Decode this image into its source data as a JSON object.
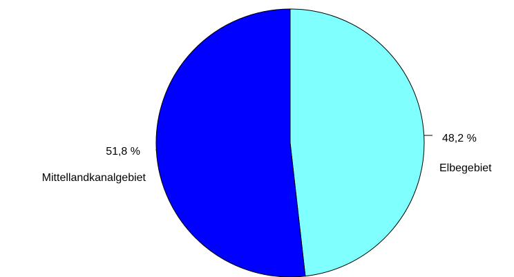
{
  "chart_data": {
    "type": "pie",
    "start_angle_deg": 0,
    "direction": "clockwise",
    "slices": [
      {
        "label": "Elbegebiet",
        "value": 48.2,
        "value_text": "48,2 %",
        "color": "#80FFFF"
      },
      {
        "label": "Mittellandkanalgebiet",
        "value": 51.8,
        "value_text": "51,8 %",
        "color": "#0000FF"
      }
    ],
    "slice_outline_color": "#000000",
    "legend": "none"
  }
}
